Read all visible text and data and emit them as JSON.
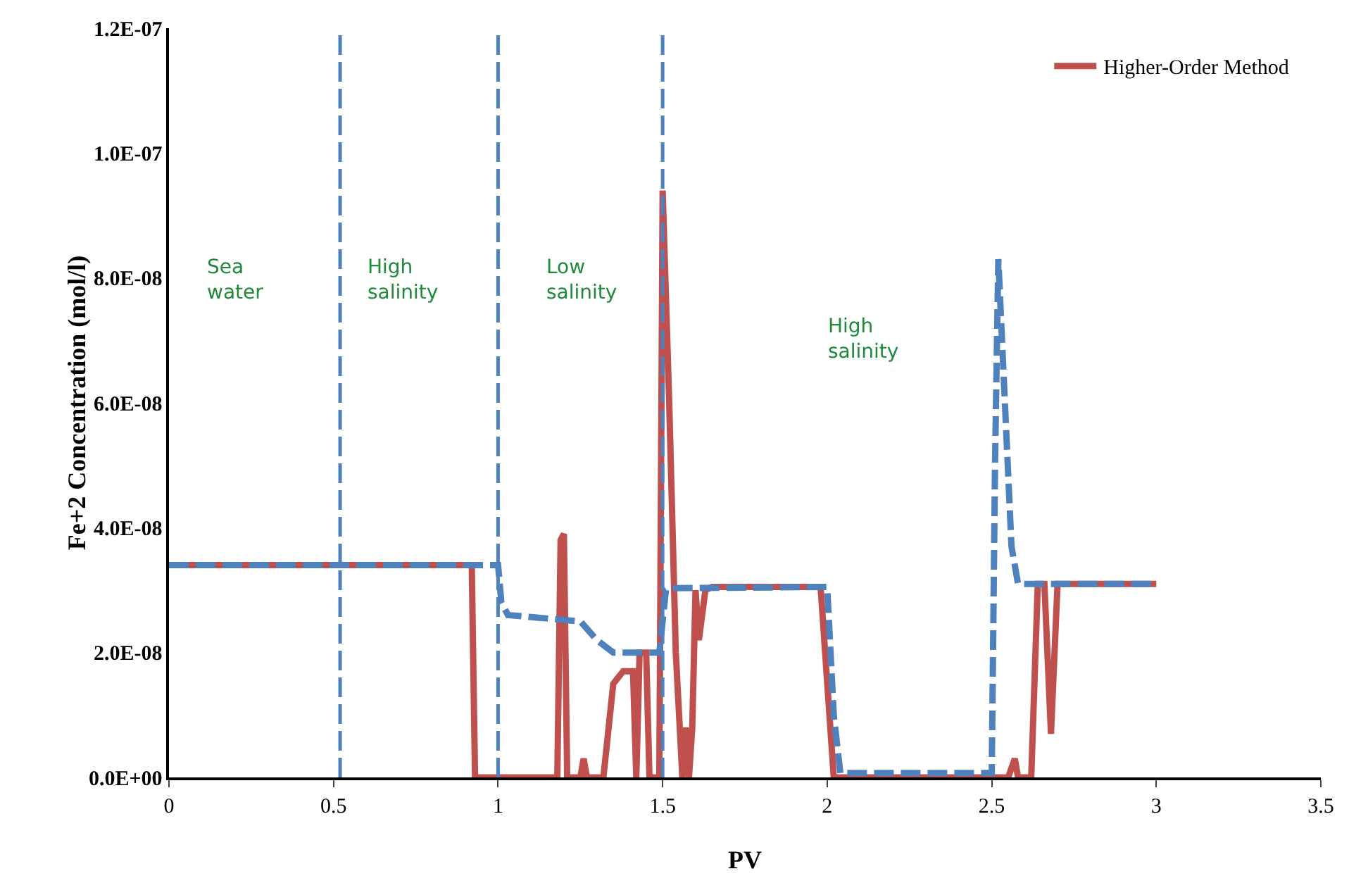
{
  "chart_data": {
    "type": "line",
    "xlabel": "PV",
    "ylabel": "Fe+2 Concentration (mol/l)",
    "xlim": [
      0,
      3.5
    ],
    "xticks": [
      0,
      0.5,
      1,
      1.5,
      2,
      2.5,
      3,
      3.5
    ],
    "ylim": [
      0,
      1.2e-07
    ],
    "yticks": [
      {
        "value": 0,
        "label": "0.0E+00"
      },
      {
        "value": 2e-08,
        "label": "2.0E-08"
      },
      {
        "value": 4e-08,
        "label": "4.0E-08"
      },
      {
        "value": 6e-08,
        "label": "6.0E-08"
      },
      {
        "value": 8e-08,
        "label": "8.0E-08"
      },
      {
        "value": 1e-07,
        "label": "1.0E-07"
      },
      {
        "value": 1.2e-07,
        "label": "1.2E-07"
      }
    ],
    "grid": false,
    "legend": "top right",
    "marker": "none",
    "series": [
      {
        "name": "Higher-Order Method",
        "color": "#c0504d",
        "line_style": "solid",
        "x": [
          0,
          0.92,
          0.93,
          1.18,
          1.19,
          1.2,
          1.21,
          1.22,
          1.25,
          1.26,
          1.27,
          1.32,
          1.35,
          1.38,
          1.41,
          1.42,
          1.43,
          1.45,
          1.46,
          1.47,
          1.49,
          1.5,
          1.52,
          1.54,
          1.56,
          1.57,
          1.58,
          1.59,
          1.6,
          1.61,
          1.63,
          1.65,
          1.98,
          2.02,
          2.55,
          2.57,
          2.58,
          2.62,
          2.64,
          2.66,
          2.68,
          2.7,
          2.72,
          3
        ],
        "values": [
          3.4e-08,
          3.4e-08,
          0,
          0,
          3.8e-08,
          3.9e-08,
          0,
          0,
          0,
          3e-09,
          0,
          0,
          1.5e-08,
          1.7e-08,
          1.7e-08,
          0,
          2e-08,
          2e-08,
          0,
          0,
          0,
          9.4e-08,
          6e-08,
          2e-08,
          0,
          8e-09,
          0,
          8e-09,
          3e-08,
          2.2e-08,
          3e-08,
          3.05e-08,
          3.05e-08,
          0,
          0,
          3e-09,
          0,
          0,
          3.1e-08,
          3.1e-08,
          7e-09,
          3.1e-08,
          3.1e-08,
          3.1e-08
        ]
      },
      {
        "color": "#4f81bd",
        "line_style": "dashed",
        "x": [
          0,
          1,
          1.01,
          1.03,
          1.25,
          1.3,
          1.35,
          1.49,
          1.5,
          1.51,
          1.52,
          2,
          2.02,
          2.04,
          2.5,
          2.51,
          2.52,
          2.54,
          2.56,
          2.58,
          3
        ],
        "values": [
          3.4e-08,
          3.4e-08,
          2.8e-08,
          2.6e-08,
          2.5e-08,
          2.2e-08,
          2e-08,
          2e-08,
          2.5e-08,
          3e-08,
          3.03e-08,
          3.05e-08,
          1e-08,
          7e-10,
          7e-10,
          5e-08,
          8.3e-08,
          6e-08,
          3.7e-08,
          3.1e-08,
          3.1e-08
        ]
      }
    ],
    "ref_lines": [
      {
        "axis": "x",
        "value": 0.52,
        "color": "#4f81bd",
        "line_style": "dashed"
      },
      {
        "axis": "x",
        "value": 1,
        "color": "#4f81bd",
        "line_style": "dashed"
      },
      {
        "axis": "x",
        "value": 1.5,
        "color": "#4f81bd",
        "line_style": "dashed"
      }
    ],
    "annotations": [
      "Sea\nwater",
      "High\nsalinity",
      "Low\nsalinity",
      "High\nsalinity"
    ]
  }
}
